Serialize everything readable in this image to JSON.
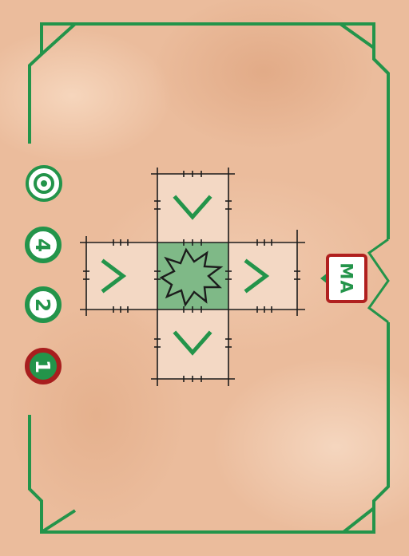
{
  "card": {
    "badge_label": "MA",
    "colors": {
      "frame": "#23944a",
      "badge_border": "#b0201f",
      "target_cell": "#7fb987",
      "range_cell": "#f3d8c4",
      "grid_line": "#1c1c1c"
    },
    "side_track": [
      {
        "icon": "target-icon"
      },
      {
        "value": "4"
      },
      {
        "value": "2"
      },
      {
        "value": "1",
        "highlighted": true
      }
    ],
    "pattern": {
      "center_icon": "explosion-icon",
      "arm_mark": "<",
      "arms": [
        "up",
        "right",
        "down",
        "left"
      ]
    }
  }
}
